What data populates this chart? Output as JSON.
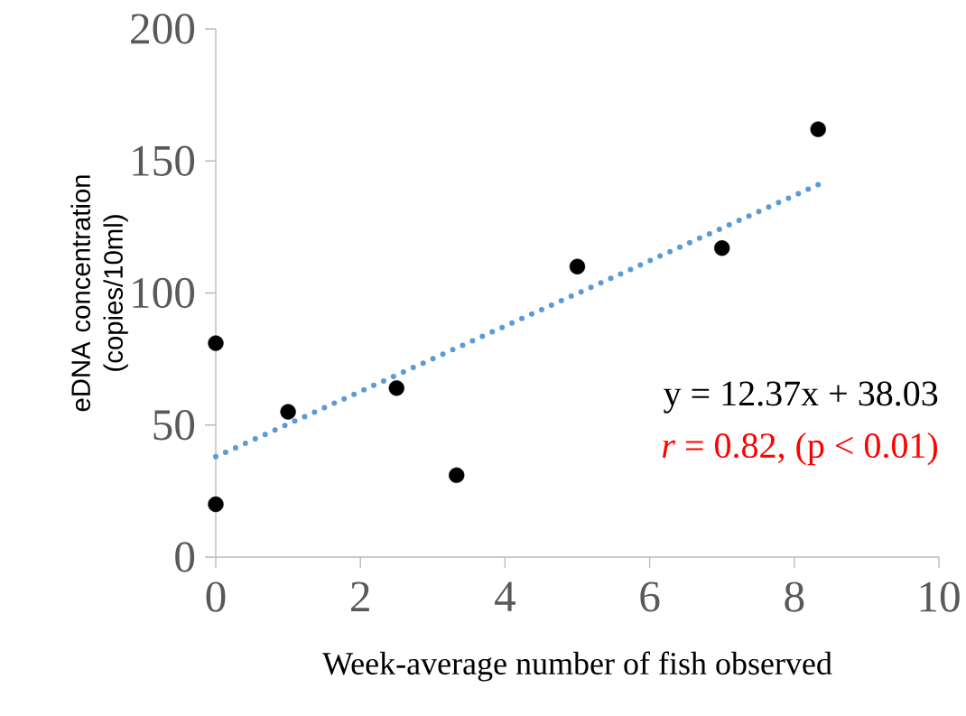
{
  "chart_data": {
    "type": "scatter",
    "xlabel": "Week-average number of fish observed",
    "ylabel": "eDNA concentration (copies/10ml)",
    "xlim": [
      0,
      10
    ],
    "ylim": [
      0,
      200
    ],
    "xticks": [
      0,
      2,
      4,
      6,
      8,
      10
    ],
    "yticks": [
      0,
      50,
      100,
      150,
      200
    ],
    "grid": false,
    "annotations": [
      "y = 12.37x + 38.03",
      "*r* = 0.82, (p < 0.01)"
    ],
    "series": [
      {
        "color": "#000000",
        "marker": "circle",
        "x": [
          0,
          0,
          1,
          2.5,
          3.33,
          5,
          7,
          8.33
        ],
        "values": [
          81,
          20,
          55,
          64,
          31,
          110,
          117,
          162
        ]
      },
      {
        "type": "line",
        "color": "#5b9bd5",
        "marker": "none",
        "line_style": "dotted",
        "x": [
          0,
          8.33
        ],
        "values": [
          38,
          141
        ]
      }
    ]
  }
}
